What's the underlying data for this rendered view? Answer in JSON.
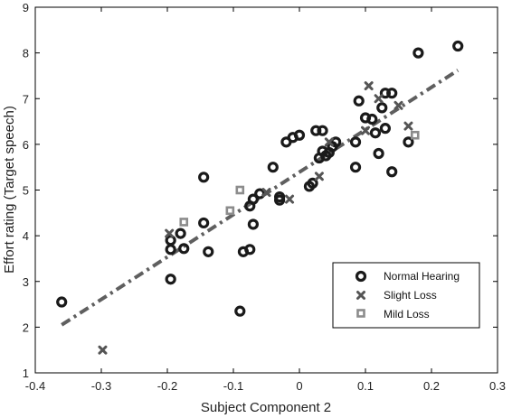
{
  "chart_data": {
    "type": "scatter",
    "xlabel": "Subject Component 2",
    "ylabel": "Effort rating (Target speech)",
    "xlim": [
      -0.4,
      0.3
    ],
    "ylim": [
      1,
      9
    ],
    "xticks": [
      "-0.4",
      "-0.3",
      "-0.2",
      "-0.1",
      "0",
      "0.1",
      "0.2",
      "0.3"
    ],
    "yticks": [
      "1",
      "2",
      "3",
      "4",
      "5",
      "6",
      "7",
      "8",
      "9"
    ],
    "grid": false,
    "legend_position": "bottom-right",
    "colors": {
      "normal": "#1a1a1a",
      "slight": "#555555",
      "mild": "#8c8c8c",
      "fit": "#5f5f5f",
      "axis": "#000000"
    },
    "series": [
      {
        "name": "Normal Hearing",
        "marker": "ring",
        "points": [
          [
            -0.36,
            2.55
          ],
          [
            -0.195,
            3.05
          ],
          [
            -0.195,
            3.7
          ],
          [
            -0.195,
            3.9
          ],
          [
            -0.18,
            4.05
          ],
          [
            -0.175,
            3.72
          ],
          [
            -0.145,
            5.28
          ],
          [
            -0.145,
            4.28
          ],
          [
            -0.138,
            3.65
          ],
          [
            -0.09,
            2.35
          ],
          [
            -0.085,
            3.65
          ],
          [
            -0.075,
            3.7
          ],
          [
            -0.075,
            4.65
          ],
          [
            -0.07,
            4.25
          ],
          [
            -0.07,
            4.8
          ],
          [
            -0.06,
            4.92
          ],
          [
            -0.04,
            5.5
          ],
          [
            -0.03,
            4.85
          ],
          [
            -0.03,
            4.78
          ],
          [
            -0.02,
            6.05
          ],
          [
            -0.01,
            6.15
          ],
          [
            0.0,
            6.2
          ],
          [
            0.015,
            5.08
          ],
          [
            0.02,
            5.15
          ],
          [
            0.025,
            6.3
          ],
          [
            0.03,
            5.7
          ],
          [
            0.035,
            6.3
          ],
          [
            0.035,
            5.85
          ],
          [
            0.04,
            5.75
          ],
          [
            0.045,
            5.82
          ],
          [
            0.05,
            5.95
          ],
          [
            0.055,
            6.05
          ],
          [
            0.085,
            6.05
          ],
          [
            0.085,
            5.5
          ],
          [
            0.09,
            6.95
          ],
          [
            0.1,
            6.58
          ],
          [
            0.11,
            6.55
          ],
          [
            0.115,
            6.25
          ],
          [
            0.12,
            5.8
          ],
          [
            0.125,
            6.8
          ],
          [
            0.13,
            6.35
          ],
          [
            0.13,
            7.12
          ],
          [
            0.14,
            7.12
          ],
          [
            0.14,
            5.4
          ],
          [
            0.165,
            6.05
          ],
          [
            0.18,
            8.0
          ],
          [
            0.24,
            8.15
          ]
        ]
      },
      {
        "name": "Slight Loss",
        "marker": "x",
        "points": [
          [
            -0.298,
            1.5
          ],
          [
            -0.197,
            4.05
          ],
          [
            -0.05,
            4.95
          ],
          [
            -0.015,
            4.8
          ],
          [
            0.03,
            5.3
          ],
          [
            0.045,
            6.05
          ],
          [
            0.1,
            6.3
          ],
          [
            0.105,
            7.28
          ],
          [
            0.12,
            7.0
          ],
          [
            0.15,
            6.85
          ],
          [
            0.165,
            6.4
          ]
        ]
      },
      {
        "name": "Mild Loss",
        "marker": "square",
        "points": [
          [
            -0.175,
            4.3
          ],
          [
            -0.105,
            4.55
          ],
          [
            -0.09,
            5.0
          ],
          [
            0.175,
            6.2
          ]
        ]
      }
    ],
    "fit_line": {
      "style": "dash-dot",
      "points": [
        [
          -0.36,
          2.05
        ],
        [
          0.24,
          7.62
        ]
      ]
    }
  }
}
